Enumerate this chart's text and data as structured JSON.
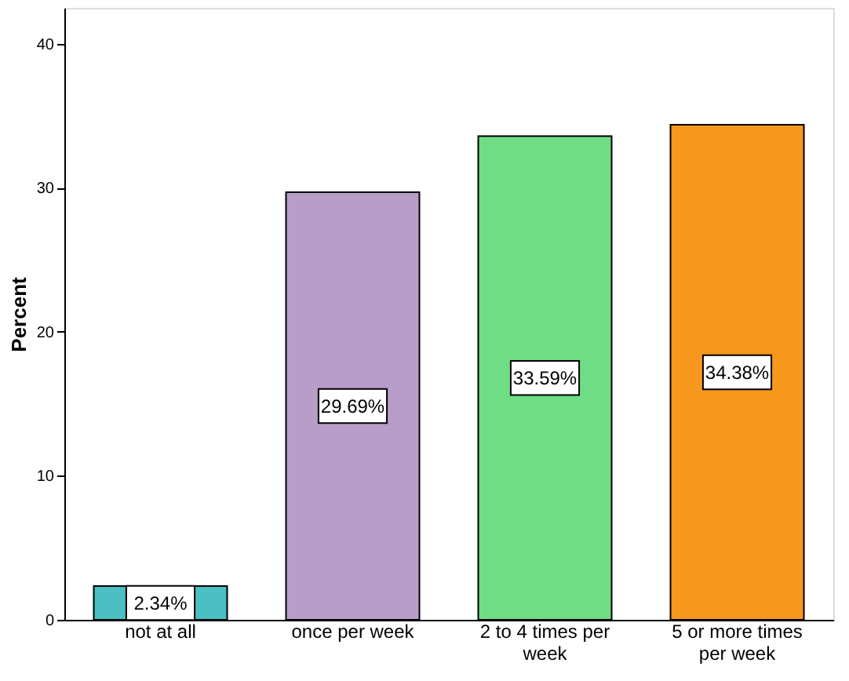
{
  "chart_data": {
    "type": "bar",
    "ylabel": "Percent",
    "categories": [
      "not at all",
      "once per week",
      "2 to 4 times per\nweek",
      "5 or more times\nper week"
    ],
    "values": [
      2.34,
      29.69,
      33.59,
      34.38
    ],
    "colors": [
      "#4bbfc1",
      "#b89dc9",
      "#6fdd86",
      "#f7971e"
    ],
    "value_labels": [
      "2.34%",
      "29.69%",
      "33.59%",
      "34.38%"
    ],
    "ylim": [
      0,
      42.5
    ],
    "yticks": [
      0,
      10,
      20,
      30,
      40
    ],
    "grid": false
  }
}
